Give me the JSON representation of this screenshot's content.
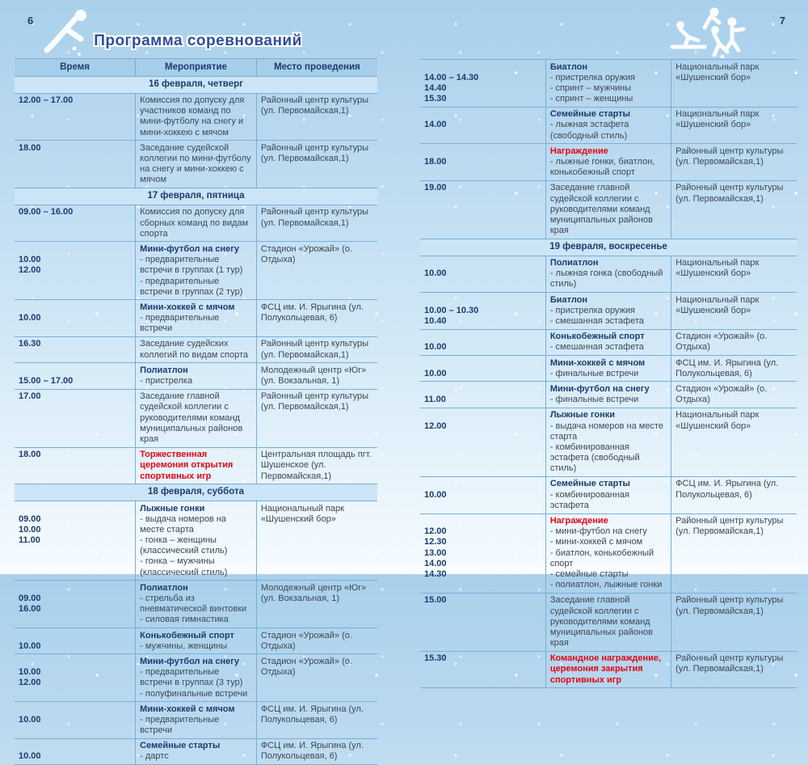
{
  "page": {
    "title": "Программа соревнований",
    "left_page_number": "6",
    "right_page_number": "7"
  },
  "colors": {
    "navy": "#1c3c6e",
    "red": "#e20613",
    "header_bg": "#a6cde9",
    "section_bg": "#cbe5f6",
    "border": "#79aed8",
    "background_top": "#a9d0eb",
    "background_bottom": "#fdfeff"
  },
  "decorations": {
    "left_icon": "hockey-player",
    "right_icon": "athletes-group"
  },
  "table_headers": [
    "Время",
    "Мероприятие",
    "Место проведения"
  ],
  "left_rows": [
    {
      "section": "16 февраля, четверг"
    },
    {
      "times": [
        "12.00 – 17.00"
      ],
      "text": "Комиссия по допуску для участников команд по мини-футболу на снегу и мини-хоккею с мячом",
      "location": "Районный центр культуры (ул. Первомайская,1)"
    },
    {
      "times": [
        "18.00"
      ],
      "text": "Заседание судейской коллегии по мини-фут­болу на снегу и мини-хоккею с мячом",
      "location": "Районный центр культуры (ул. Первомайская,1)"
    },
    {
      "section": "17 февраля, пятница"
    },
    {
      "times": [
        "09.00 – 16.00"
      ],
      "text": "Комиссия по допуску для сборных команд по видам спорта",
      "location": "Районный центр культуры (ул. Первомайская,1)"
    },
    {
      "times": [
        "",
        "10.00",
        "12.00"
      ],
      "title": "Мини-футбол на снегу",
      "lines": [
        "- предварительные встречи в группах (1 тур)",
        "- предварительные встречи в группах (2 тур)"
      ],
      "location": "Стадион «Урожай» (о. Отдыха)"
    },
    {
      "times": [
        "",
        "10.00"
      ],
      "title": "Мини-хоккей с мячом",
      "lines": [
        "- предварительные встречи"
      ],
      "location": "ФСЦ им. И. Ярыгина (ул. Полукольцевая, 6)"
    },
    {
      "times": [
        "16.30"
      ],
      "text": "Заседание судейских коллегий по видам спорта",
      "location": "Районный центр культуры (ул. Первомайская,1)"
    },
    {
      "times": [
        "",
        "15.00 – 17.00"
      ],
      "title": "Полиатлон",
      "lines": [
        "- пристрелка"
      ],
      "location": "Молодежный центр «Юг» (ул. Вокзальная, 1)"
    },
    {
      "times": [
        "17.00"
      ],
      "text": "Заседание главной судейской коллегии с руководителями команд муниципальных районов края",
      "location": "Районный центр культуры (ул. Первомайская,1)"
    },
    {
      "times": [
        "18.00"
      ],
      "title": "Торжественная церемония открытия спортивных игр",
      "title_red": true,
      "lines": [],
      "location": "Центральная площадь пгт. Шушенское (ул. Первомайская,1)"
    },
    {
      "section": "18 февраля, суббота"
    },
    {
      "times": [
        "",
        "09.00",
        "10.00",
        "11.00"
      ],
      "title": "Лыжные гонки",
      "lines": [
        "- выдача номеров на месте старта",
        "- гонка – женщины (классический стиль)",
        "- гонка – мужчины (классический стиль)"
      ],
      "location": "Национальный парк «Шушенский бор»"
    },
    {
      "times": [
        "",
        "09.00",
        "16.00"
      ],
      "title": "Полиатлон",
      "lines": [
        "- стрельба из пневматической винтовки",
        "- силовая гимнастика"
      ],
      "location": "Молодежный центр «Юг» (ул. Вокзальная, 1)"
    },
    {
      "times": [
        "",
        "10.00"
      ],
      "title": "Конькобежный спорт",
      "lines": [
        "- мужчины, женщины"
      ],
      "location": "Стадион «Урожай» (о. Отдыха)"
    },
    {
      "times": [
        "",
        "10.00",
        "12.00"
      ],
      "title": "Мини-футбол на снегу",
      "lines": [
        "- предварительные встречи в группах (3 тур)",
        "- полуфинальные встречи"
      ],
      "location": "Стадион «Урожай» (о. Отдыха)"
    },
    {
      "times": [
        "",
        "10.00"
      ],
      "title": "Мини-хоккей с мячом",
      "lines": [
        "- предварительные встречи"
      ],
      "location": "ФСЦ им. И. Ярыгина (ул. Полукольцевая, 6)"
    },
    {
      "times": [
        "",
        "10.00"
      ],
      "title": "Семейные старты",
      "lines": [
        "- дартс"
      ],
      "location": "ФСЦ им. И. Ярыгина (ул. Полукольцевая, 6)"
    }
  ],
  "right_rows": [
    {
      "times": [
        "",
        "14.00 – 14.30",
        "14.40",
        "15.30"
      ],
      "title": "Биатлон",
      "lines": [
        "- пристрелка оружия",
        "- спринт – мужчины",
        "- спринт – женщины"
      ],
      "location": "Национальный парк «Шушенский бор»"
    },
    {
      "times": [
        "",
        "14.00"
      ],
      "title": "Семейные старты",
      "lines": [
        "- лыжная эстафета (свободный стиль)"
      ],
      "location": "Национальный парк «Шушенский бор»"
    },
    {
      "times": [
        "",
        "18.00"
      ],
      "title": "Награждение",
      "title_red": true,
      "lines": [
        "- лыжные гонки, биатлон, конькобежный спорт"
      ],
      "location": "Районный центр культуры (ул. Первомайская,1)"
    },
    {
      "times": [
        "19.00"
      ],
      "text": "Заседание главной судейской коллегии с руководителями команд муниципальных районов края",
      "location": "Районный центр культуры (ул. Первомайская,1)"
    },
    {
      "section": "19 февраля, воскресенье"
    },
    {
      "times": [
        "",
        "10.00"
      ],
      "title": "Полиатлон",
      "lines": [
        "- лыжная гонка (свободный стиль)"
      ],
      "location": "Национальный парк «Шушенский бор»"
    },
    {
      "times": [
        "",
        "10.00 – 10.30",
        "10.40"
      ],
      "title": "Биатлон",
      "lines": [
        "- пристрелка оружия",
        "- смешанная эстафета"
      ],
      "location": "Национальный парк «Шушенский бор»"
    },
    {
      "times": [
        "",
        "10.00"
      ],
      "title": "Конькобежный спорт",
      "lines": [
        "- смешанная эстафета"
      ],
      "location": "Стадион «Урожай» (о. Отдыха)"
    },
    {
      "times": [
        "",
        "10.00"
      ],
      "title": "Мини-хоккей с мячом",
      "lines": [
        "- финальные встречи"
      ],
      "location": "ФСЦ им. И. Ярыгина (ул. Полукольцевая, 6)"
    },
    {
      "times": [
        "",
        "11.00"
      ],
      "title": "Мини-футбол на снегу",
      "lines": [
        "- финальные встречи"
      ],
      "location": "Стадион «Урожай» (о. Отдыха)"
    },
    {
      "times": [
        "",
        "12.00"
      ],
      "title": "Лыжные гонки",
      "lines": [
        "- выдача номеров на месте старта",
        "- комбинированная эстафета (свободный стиль)"
      ],
      "location": "Национальный парк «Шушенский бор»"
    },
    {
      "times": [
        "",
        "10.00"
      ],
      "title": "Семейные старты",
      "lines": [
        "- комбинированная эстафета"
      ],
      "location": "ФСЦ им. И. Ярыгина (ул. Полукольцевая, 6)"
    },
    {
      "times": [
        "",
        "12.00",
        "12.30",
        "13.00",
        "14.00",
        "14.30"
      ],
      "title": "Награждение",
      "title_red": true,
      "lines": [
        "- мини-футбол на снегу",
        "- мини-хоккей с мячом",
        "- биатлон, конькобежный спорт",
        "- семейные старты",
        "- полиатлон, лыжные гонки"
      ],
      "location": "Районный центр культуры (ул. Первомайская,1)"
    },
    {
      "times": [
        "15.00"
      ],
      "text": "Заседание главной судейской коллегии с руководителями команд муниципальных районов края",
      "location": "Районный центр культуры (ул. Первомайская,1)"
    },
    {
      "times": [
        "15.30"
      ],
      "title": "Командное награждение, церемония закрытия спортивных игр",
      "title_red": true,
      "lines": [],
      "location": "Районный центр культуры (ул. Первомайская,1)"
    }
  ]
}
